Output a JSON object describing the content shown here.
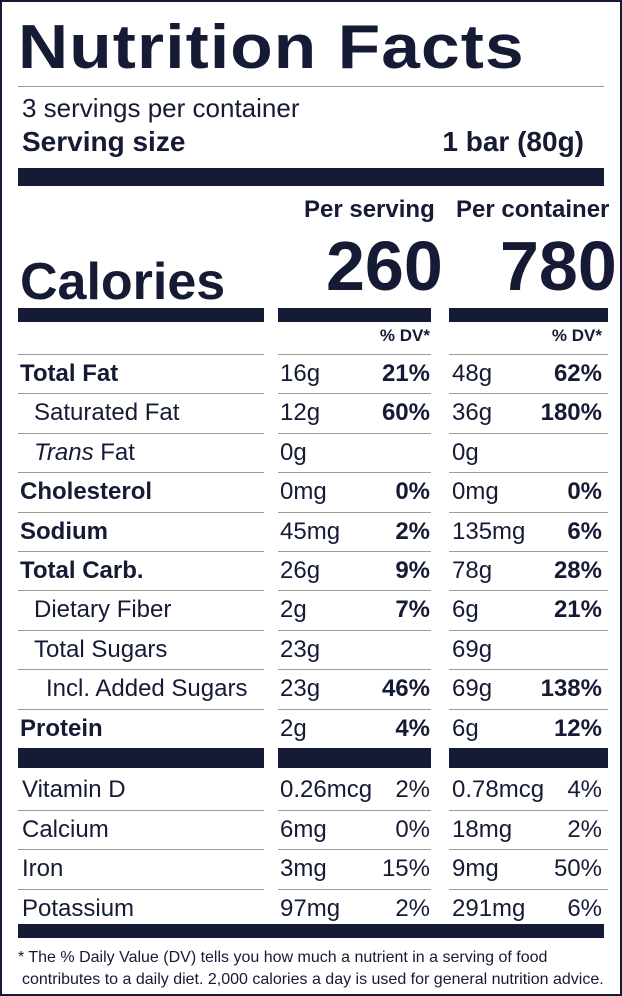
{
  "title": "Nutrition Facts",
  "servings_per_container": "3 servings per container",
  "serving_size_label": "Serving size",
  "serving_size_value": "1 bar (80g)",
  "col_per_serving": "Per serving",
  "col_per_container": "Per container",
  "calories_label": "Calories",
  "calories_serving": "260",
  "calories_container": "780",
  "dv_header": "% DV*",
  "nutrients": [
    {
      "name": "Total Fat",
      "bold": true,
      "indent": 0,
      "s_amt": "16g",
      "s_dv": "21%",
      "c_amt": "48g",
      "c_dv": "62%"
    },
    {
      "name": "Saturated Fat",
      "bold": false,
      "indent": 1,
      "s_amt": "12g",
      "s_dv": "60%",
      "c_amt": "36g",
      "c_dv": "180%"
    },
    {
      "name_italic": "Trans",
      "name": " Fat",
      "bold": false,
      "indent": 1,
      "s_amt": "0g",
      "s_dv": "",
      "c_amt": "0g",
      "c_dv": ""
    },
    {
      "name": "Cholesterol",
      "bold": true,
      "indent": 0,
      "s_amt": "0mg",
      "s_dv": "0%",
      "c_amt": "0mg",
      "c_dv": "0%"
    },
    {
      "name": "Sodium",
      "bold": true,
      "indent": 0,
      "s_amt": "45mg",
      "s_dv": "2%",
      "c_amt": "135mg",
      "c_dv": "6%"
    },
    {
      "name": "Total Carb.",
      "bold": true,
      "indent": 0,
      "s_amt": "26g",
      "s_dv": "9%",
      "c_amt": "78g",
      "c_dv": "28%"
    },
    {
      "name": "Dietary Fiber",
      "bold": false,
      "indent": 1,
      "s_amt": "2g",
      "s_dv": "7%",
      "c_amt": "6g",
      "c_dv": "21%"
    },
    {
      "name": "Total Sugars",
      "bold": false,
      "indent": 1,
      "s_amt": "23g",
      "s_dv": "",
      "c_amt": "69g",
      "c_dv": ""
    },
    {
      "name": "Incl. Added Sugars",
      "bold": false,
      "indent": 2,
      "s_amt": "23g",
      "s_dv": "46%",
      "c_amt": "69g",
      "c_dv": "138%"
    },
    {
      "name": "Protein",
      "bold": true,
      "indent": 0,
      "s_amt": "2g",
      "s_dv": "4%",
      "c_amt": "6g",
      "c_dv": "12%"
    }
  ],
  "vitamins": [
    {
      "name": "Vitamin D",
      "s_amt": "0.26mcg",
      "s_dv": "2%",
      "c_amt": "0.78mcg",
      "c_dv": "4%"
    },
    {
      "name": "Calcium",
      "s_amt": "6mg",
      "s_dv": "0%",
      "c_amt": "18mg",
      "c_dv": "2%"
    },
    {
      "name": "Iron",
      "s_amt": "3mg",
      "s_dv": "15%",
      "c_amt": "9mg",
      "c_dv": "50%"
    },
    {
      "name": "Potassium",
      "s_amt": "97mg",
      "s_dv": "2%",
      "c_amt": "291mg",
      "c_dv": "6%"
    }
  ],
  "footnote_line1": "* The % Daily Value (DV) tells you how much a nutrient in a serving of food",
  "footnote_line2": "contributes to a daily diet. 2,000 calories a day is used for general nutrition advice.",
  "colors": {
    "ink": "#161b35",
    "hairline": "#9a9a9a"
  }
}
